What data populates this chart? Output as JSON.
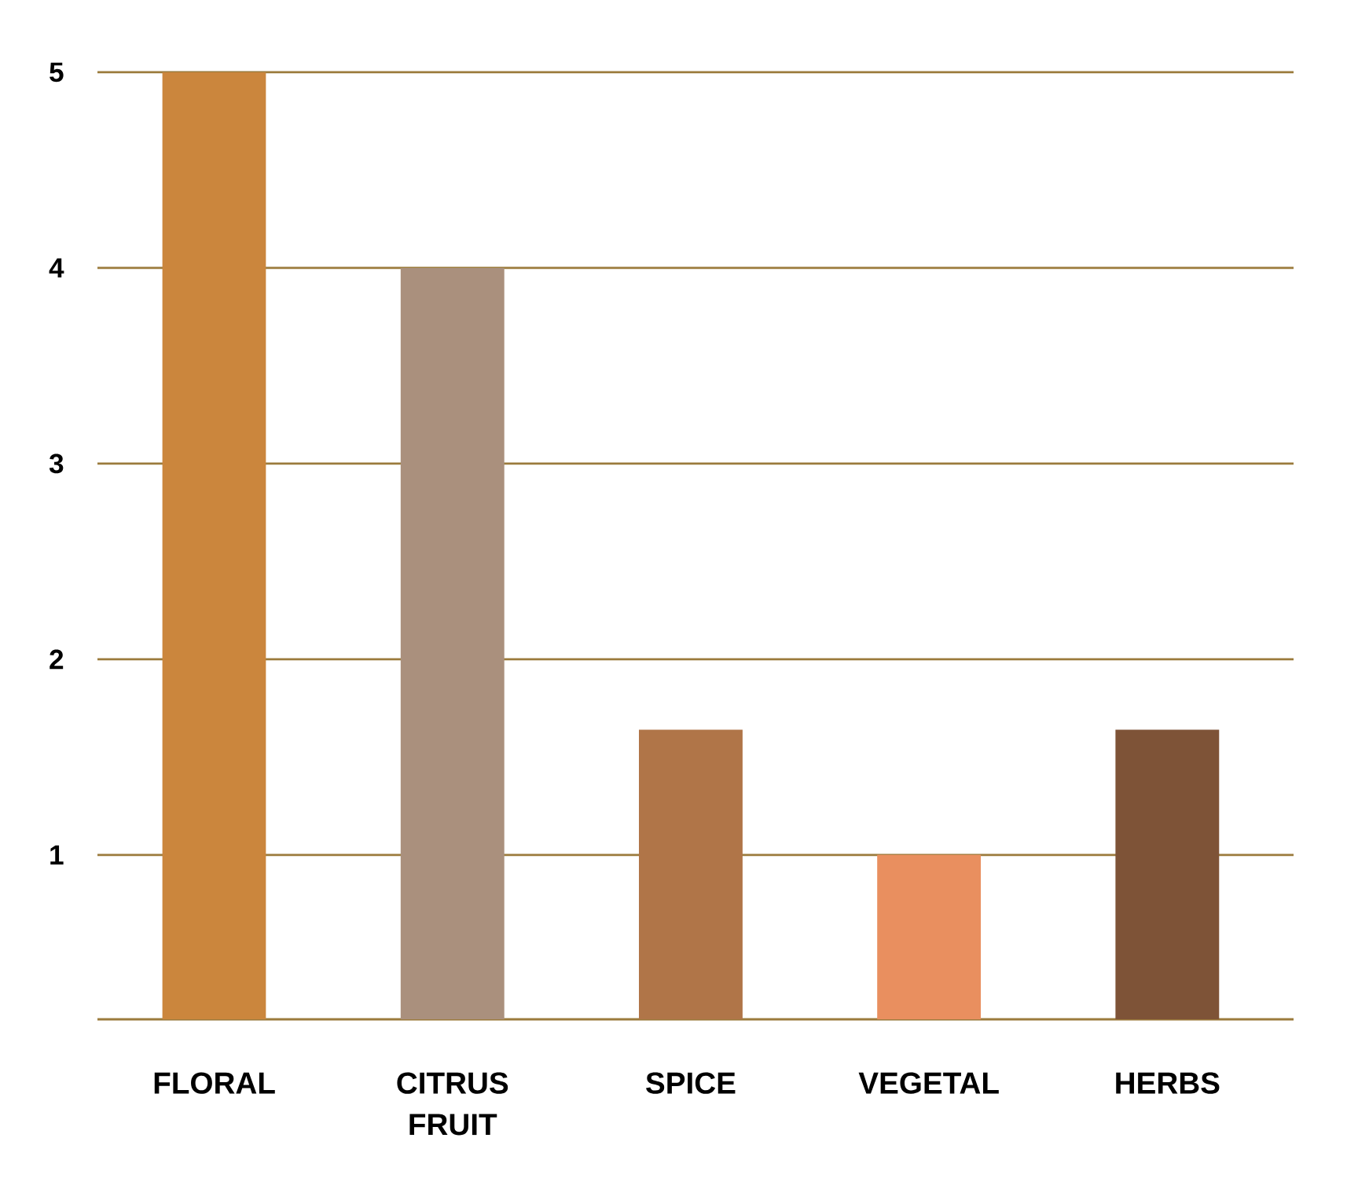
{
  "chart_data": {
    "type": "bar",
    "categories": [
      "FLORAL",
      "CITRUS FRUIT",
      "SPICE",
      "VEGETAL",
      "HERBS"
    ],
    "values": [
      5,
      4,
      1.64,
      1,
      1.64
    ],
    "colors": [
      "#cb863d",
      "#aa907d",
      "#b07548",
      "#e98f5f",
      "#7e5337"
    ],
    "ylim": [
      0.16,
      5
    ],
    "yticks": [
      1,
      2,
      3,
      4,
      5
    ],
    "grid": "y"
  }
}
